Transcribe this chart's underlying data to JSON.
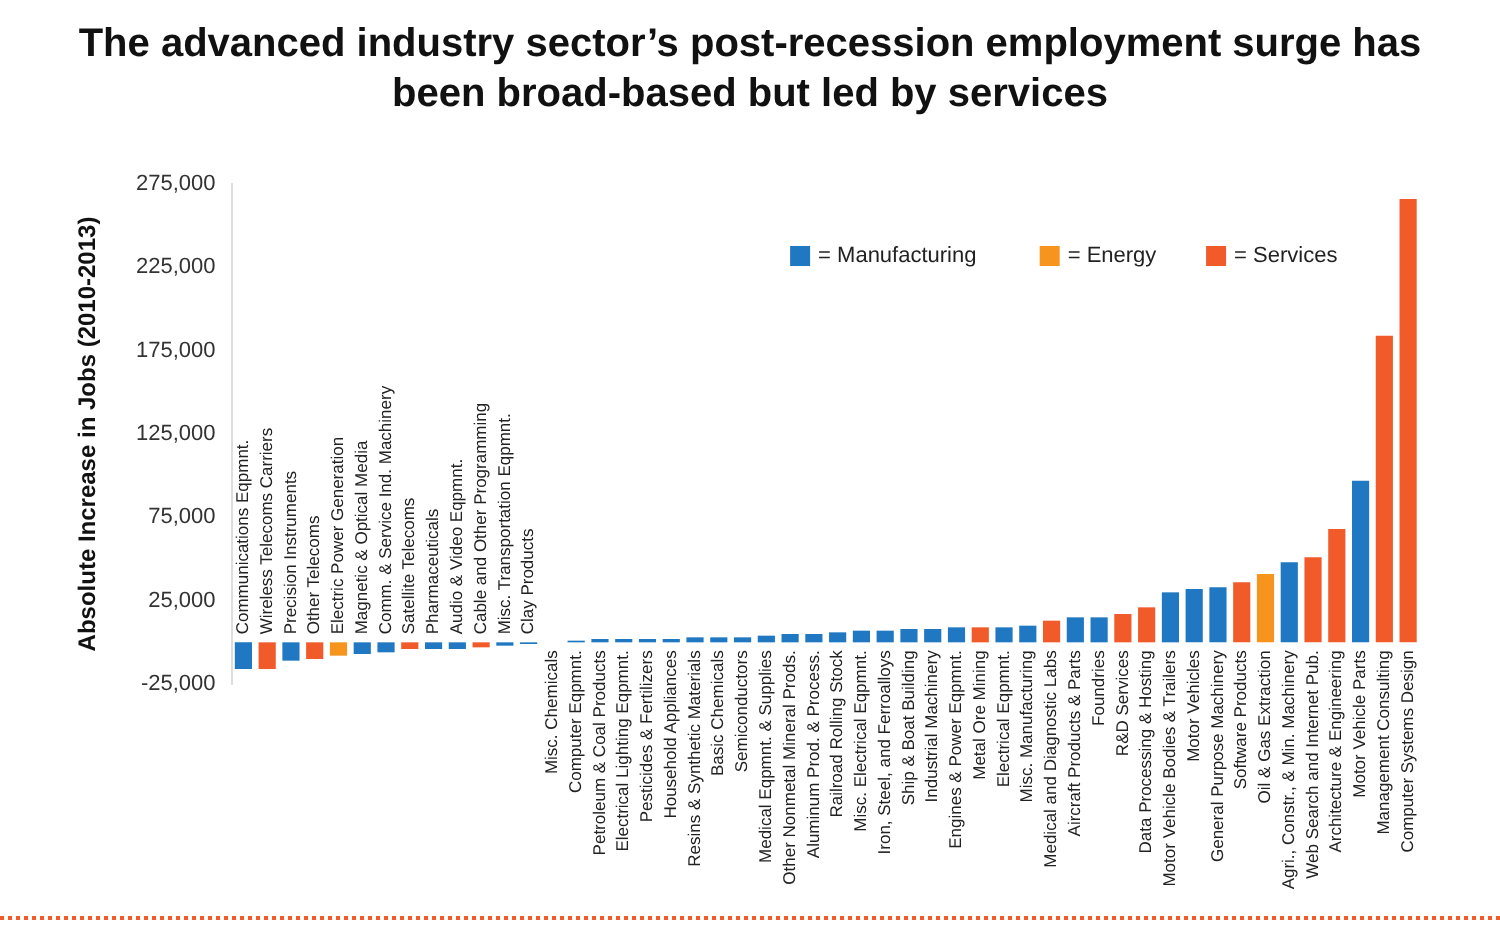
{
  "chart_data": {
    "type": "bar",
    "title": "The advanced industry sector’s post-recession employment surge has been broad-based but led by services",
    "ylabel": "Absolute Increase in Jobs (2010-2013)",
    "categories": [
      "Communications Eqpmnt.",
      "Wireless Telecoms Carriers",
      "Precision Instruments",
      "Other Telecoms",
      "Electric Power Generation",
      "Magnetic & Optical Media",
      "Comm. & Service Ind. Machinery",
      "Satellite Telecoms",
      "Pharmaceuticals",
      "Audio & Video Eqpmnt.",
      "Cable and Other Programming",
      "Misc. Transportation Eqpmnt.",
      "Clay Products",
      "Misc. Chemicals",
      "Computer Eqpmnt.",
      "Petroleum & Coal Products",
      "Electrical Lighting Eqpmnt.",
      "Pesticides & Fertilizers",
      "Household Appliances",
      "Resins & Synthetic Materials",
      "Basic Chemicals",
      "Semiconductors",
      "Medical Eqpmnt. & Supplies",
      "Other Nonmetal Mineral Prods.",
      "Aluminum Prod. & Process.",
      "Railroad Rolling Stock",
      "Misc. Electrical Eqpmnt.",
      "Iron, Steel, and Ferroalloys",
      "Ship & Boat Building",
      "Industrial Machinery",
      "Engines & Power Eqpmnt.",
      "Metal Ore Mining",
      "Electrical Eqpmnt.",
      "Misc. Manufacturing",
      "Medical and Diagnostic Labs",
      "Aircraft Products & Parts",
      "Foundries",
      "R&D Services",
      "Data Processing & Hosting",
      "Motor Vehicle Bodies & Trailers",
      "Motor Vehicles",
      "General Purpose Machinery",
      "Software Products",
      "Oil & Gas Extraction",
      "Agri., Constr., & Min. Machinery",
      "Web Search and Internet Pub.",
      "Architecture & Engineering",
      "Motor Vehicle Parts",
      "Management Consulting",
      "Computer Systems Design"
    ],
    "series": [
      {
        "name": "= Manufacturing",
        "color": "#1f78c1",
        "values": [
          -16000,
          null,
          -11000,
          null,
          null,
          -7000,
          -6000,
          null,
          -4000,
          -4000,
          null,
          -2000,
          -1000,
          0,
          1000,
          2000,
          2000,
          2000,
          2000,
          3000,
          3000,
          3000,
          4000,
          5000,
          5000,
          6000,
          7000,
          7000,
          8000,
          8000,
          9000,
          null,
          9000,
          10000,
          null,
          15000,
          15000,
          null,
          null,
          30000,
          32000,
          33000,
          null,
          null,
          48000,
          null,
          null,
          97000,
          null,
          null
        ]
      },
      {
        "name": "= Energy",
        "color": "#f7941d",
        "values": [
          null,
          null,
          null,
          null,
          -8000,
          null,
          null,
          null,
          null,
          null,
          null,
          null,
          null,
          null,
          null,
          null,
          null,
          null,
          null,
          null,
          null,
          null,
          null,
          null,
          null,
          null,
          null,
          null,
          null,
          null,
          null,
          null,
          null,
          null,
          null,
          null,
          null,
          null,
          null,
          null,
          null,
          null,
          null,
          41000,
          null,
          null,
          null,
          null,
          null,
          null
        ]
      },
      {
        "name": "= Services",
        "color": "#f15a29",
        "values": [
          null,
          -16000,
          null,
          -10000,
          null,
          null,
          null,
          -4000,
          null,
          null,
          -3000,
          null,
          null,
          null,
          null,
          null,
          null,
          null,
          null,
          null,
          null,
          null,
          null,
          null,
          null,
          null,
          null,
          null,
          null,
          null,
          null,
          9000,
          null,
          null,
          13000,
          null,
          null,
          17000,
          21000,
          null,
          null,
          null,
          36000,
          null,
          null,
          51000,
          68000,
          null,
          184000,
          266000
        ]
      }
    ],
    "ylim": [
      -25000,
      275000
    ],
    "yticks": [
      {
        "value": -25000,
        "label": "-25,000"
      },
      {
        "value": 25000,
        "label": "25,000"
      },
      {
        "value": 75000,
        "label": "75,000"
      },
      {
        "value": 125000,
        "label": "125,000"
      },
      {
        "value": 175000,
        "label": "175,000"
      },
      {
        "value": 225000,
        "label": "225,000"
      },
      {
        "value": 275000,
        "label": "275,000"
      }
    ],
    "grid": false,
    "legend": "top right"
  }
}
